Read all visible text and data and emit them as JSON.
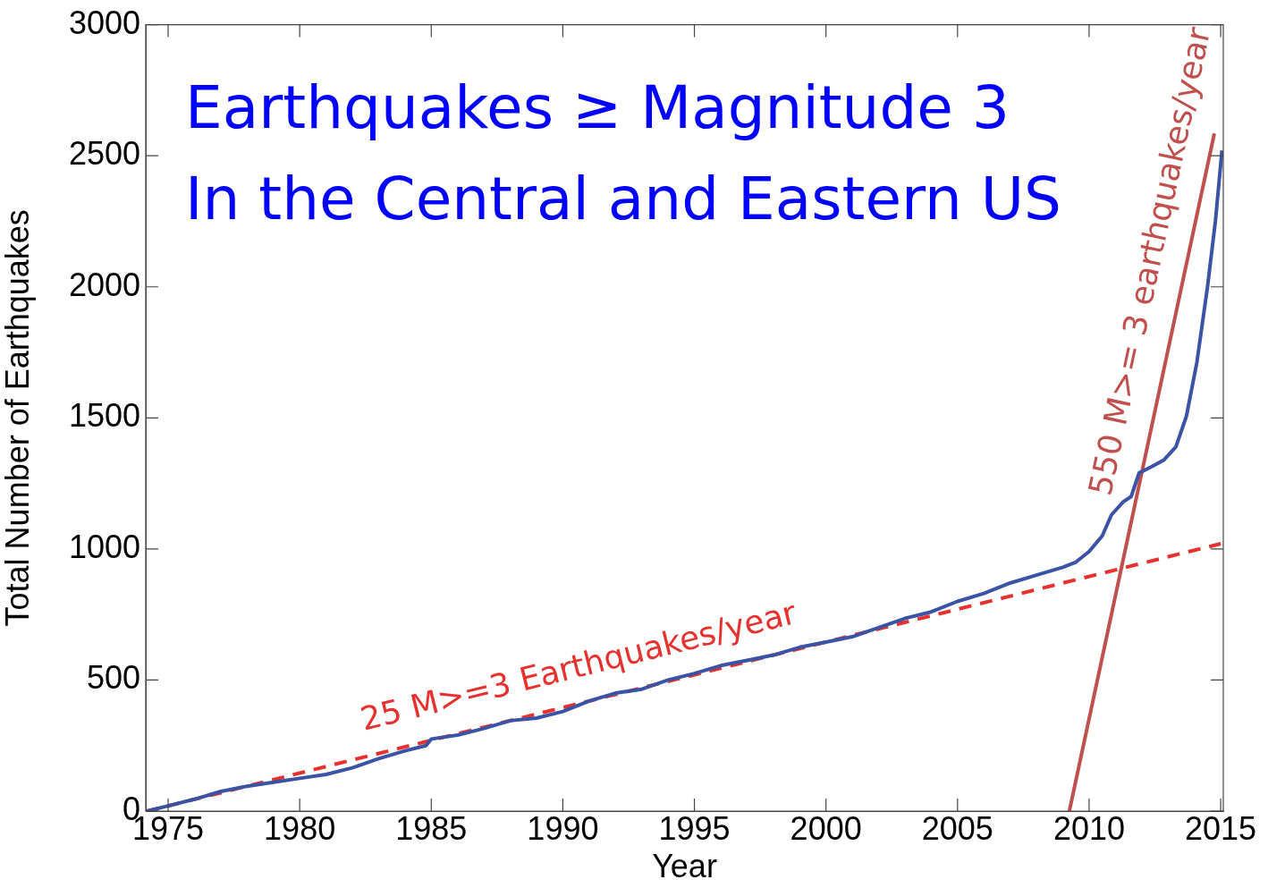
{
  "chart_data": {
    "type": "line",
    "title": "Earthquakes ≥ Magnitude 3\nIn the Central and Eastern US",
    "xlabel": "Year",
    "ylabel": "Total Number of Earthquakes",
    "xlim": [
      1974.15,
      2015.1
    ],
    "xticks": [
      1975,
      1980,
      1985,
      1990,
      1995,
      2000,
      2005,
      2010,
      2015
    ],
    "ylim": [
      0,
      3000
    ],
    "yticks": [
      0,
      500,
      1000,
      1500,
      2000,
      2500,
      3000
    ],
    "grid": false,
    "legend": false,
    "marker": "none",
    "series": [
      {
        "color": "#3a53a4",
        "line_style": "solid",
        "x": [
          1974.2,
          1975,
          1976,
          1977,
          1978,
          1979,
          1980,
          1981,
          1982,
          1983,
          1984,
          1984.8,
          1985,
          1986,
          1987,
          1988,
          1989,
          1990,
          1991,
          1992,
          1993,
          1994,
          1995,
          1996,
          1997,
          1998,
          1999,
          2000,
          2001,
          2002,
          2003,
          2004,
          2005,
          2006,
          2007,
          2008,
          2009,
          2009.5,
          2010,
          2010.5,
          2010.85,
          2011.3,
          2011.6,
          2011.9,
          2012.4,
          2012.85,
          2013.3,
          2013.7,
          2014.1,
          2014.5,
          2014.8,
          2015.05
        ],
        "values": [
          0,
          20,
          45,
          75,
          95,
          110,
          125,
          140,
          165,
          200,
          230,
          250,
          275,
          290,
          315,
          345,
          355,
          380,
          420,
          450,
          465,
          500,
          525,
          555,
          575,
          595,
          625,
          645,
          665,
          700,
          735,
          760,
          800,
          830,
          870,
          900,
          930,
          950,
          990,
          1050,
          1130,
          1180,
          1200,
          1290,
          1315,
          1340,
          1390,
          1507,
          1714,
          2000,
          2250,
          2520
        ]
      },
      {
        "name": "25 M>=3 Earthquakes/year",
        "color": "#e8312f",
        "line_style": "dashed",
        "x": [
          1974.2,
          2015
        ],
        "values": [
          0,
          1020
        ]
      },
      {
        "name": "550 M>= 3 earthquakes/year",
        "color": "#c0504d",
        "line_style": "solid",
        "x": [
          2009.25,
          2014.76
        ],
        "values": [
          0,
          2585
        ]
      }
    ]
  }
}
